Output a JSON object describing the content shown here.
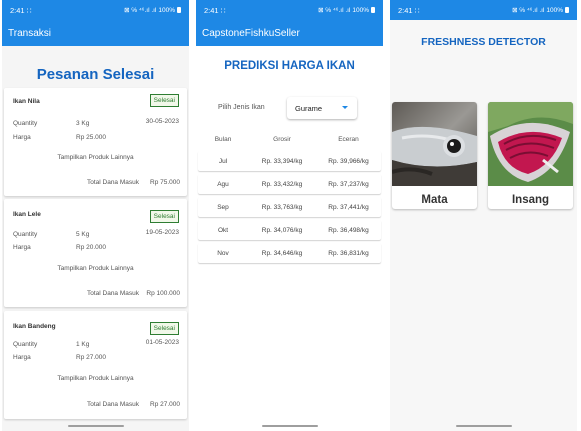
{
  "status": {
    "time": "2:41",
    "dots": "∷",
    "icons": "⊠ ℅ ⁴⁶.ıl .ıl",
    "battery": "100%"
  },
  "screen1": {
    "appbar_title": "Transaksi",
    "heading": "Pesanan Selesai",
    "orders": [
      {
        "name": "Ikan Nila",
        "status": "Selesai",
        "quantity_label": "Quantity",
        "quantity": "3 Kg",
        "date": "30-05-2023",
        "price_label": "Harga",
        "price": "Rp 25.000",
        "more": "Tampilkan Produk Lainnya",
        "total_label": "Total Dana Masuk",
        "total": "Rp 75.000"
      },
      {
        "name": "Ikan Lele",
        "status": "Selesai",
        "quantity_label": "Quantity",
        "quantity": "5 Kg",
        "date": "19-05-2023",
        "price_label": "Harga",
        "price": "Rp 20.000",
        "more": "Tampilkan Produk Lainnya",
        "total_label": "Total Dana Masuk",
        "total": "Rp 100.000"
      },
      {
        "name": "Ikan Bandeng",
        "status": "Selesai",
        "quantity_label": "Quantity",
        "quantity": "1 Kg",
        "date": "01-05-2023",
        "price_label": "Harga",
        "price": "Rp 27.000",
        "more": "Tampilkan Produk Lainnya",
        "total_label": "Total Dana Masuk",
        "total": "Rp 27.000"
      }
    ]
  },
  "screen2": {
    "appbar_title": "CapstoneFishkuSeller",
    "heading": "PREDIKSI HARGA IKAN",
    "select_label": "Pilih Jenis Ikan",
    "select_value": "Gurame",
    "columns": [
      "Bulan",
      "Grosir",
      "Eceran"
    ],
    "rows": [
      [
        "Jul",
        "Rp. 33,394/kg",
        "Rp. 39,966/kg"
      ],
      [
        "Agu",
        "Rp. 33,432/kg",
        "Rp. 37,237/kg"
      ],
      [
        "Sep",
        "Rp. 33,763/kg",
        "Rp. 37,441/kg"
      ],
      [
        "Okt",
        "Rp. 34,076/kg",
        "Rp. 36,498/kg"
      ],
      [
        "Nov",
        "Rp. 34,646/kg",
        "Rp. 36,831/kg"
      ]
    ]
  },
  "screen3": {
    "heading": "FRESHNESS DETECTOR",
    "cards": [
      {
        "label": "Mata",
        "icon": "fish-eye-photo"
      },
      {
        "label": "Insang",
        "icon": "fish-gill-photo"
      }
    ]
  },
  "colors": {
    "primary": "#1e88e5",
    "heading": "#1565c0",
    "badge": "#2e7d32"
  }
}
